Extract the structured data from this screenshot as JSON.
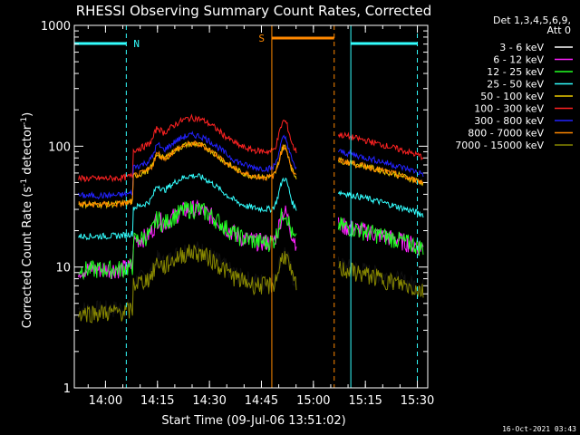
{
  "chart_data": {
    "type": "line",
    "title": "RHESSI Observing Summary Count Rates, Corrected",
    "xlabel": "Start Time (09-Jul-06 13:51:02)",
    "ylabel_main": "Corrected Count Rate (s",
    "ylabel_sup1": "-1",
    "ylabel_mid": " detector",
    "ylabel_sup2": "-1",
    "ylabel_end": ")",
    "yscale": "log",
    "ylim": [
      1,
      1000
    ],
    "xlim_minutes": [
      13.85,
      15.55
    ],
    "x_ticks": [
      {
        "t": 14.0,
        "label": "14:00"
      },
      {
        "t": 14.25,
        "label": "14:15"
      },
      {
        "t": 14.5,
        "label": "14:30"
      },
      {
        "t": 14.75,
        "label": "14:45"
      },
      {
        "t": 15.0,
        "label": "15:00"
      },
      {
        "t": 15.25,
        "label": "15:15"
      },
      {
        "t": 15.5,
        "label": "15:30"
      }
    ],
    "y_ticks": [
      {
        "v": 1,
        "label": "1"
      },
      {
        "v": 10,
        "label": "10"
      },
      {
        "v": 100,
        "label": "100"
      },
      {
        "v": 1000,
        "label": "1000"
      }
    ],
    "legend_header": [
      "Det 1,3,4,5,6,9,",
      "Att 0"
    ],
    "series": [
      {
        "name": "3 - 6 keV",
        "color": "#000000",
        "base": 7.5
      },
      {
        "name": "6 - 12 keV",
        "color": "#ff22ff",
        "base": 16
      },
      {
        "name": "12 - 25 keV",
        "color": "#22ff22",
        "base": 16
      },
      {
        "name": "25 - 50 keV",
        "color": "#33ffff",
        "base": 30
      },
      {
        "name": "50 - 100 keV",
        "color": "#eecc00",
        "base": 55
      },
      {
        "name": "100 - 300 keV",
        "color": "#ff2222",
        "base": 90
      },
      {
        "name": "300 - 800 keV",
        "color": "#2222ff",
        "base": 65
      },
      {
        "name": "800 - 7000 keV",
        "color": "#ff8800",
        "base": 55
      },
      {
        "name": "7000 - 15000 keV",
        "color": "#888800",
        "base": 7
      }
    ],
    "annotations": [
      {
        "label": "N",
        "color": "#33ffff"
      },
      {
        "label": "S",
        "color": "#ff8800"
      }
    ],
    "timestamp": "16-Oct-2021 03:43"
  }
}
